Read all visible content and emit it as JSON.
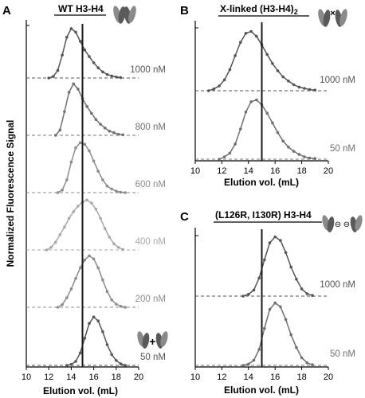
{
  "figure": {
    "ylabel": "Normalized Fluorescence Signal",
    "icon_plus": "+",
    "icon_minus": "⊖",
    "icon_link": "×"
  },
  "chart_data": [
    {
      "panel_letter": "A",
      "title": "WT H3-H4",
      "type": "line",
      "xlabel": "Elution vol. (mL)",
      "xlim": [
        10,
        20
      ],
      "xticks": [
        "10",
        "12",
        "14",
        "16",
        "18",
        "20"
      ],
      "vline_x": 15,
      "icon": "h3h4-tetramer-icon",
      "series": [
        {
          "name": "1000 nM",
          "color": "#555555",
          "x": [
            12.0,
            12.4,
            12.8,
            13.2,
            13.6,
            14.0,
            14.4,
            14.8,
            15.2,
            15.6,
            16.0,
            16.4,
            16.8,
            17.2,
            17.6,
            18.0,
            18.4
          ],
          "y": [
            0.0,
            0.03,
            0.15,
            0.45,
            0.8,
            0.97,
            0.9,
            0.72,
            0.55,
            0.42,
            0.3,
            0.2,
            0.12,
            0.07,
            0.04,
            0.02,
            0.01
          ]
        },
        {
          "name": "800 nM",
          "color": "#707070",
          "x": [
            12.6,
            13.0,
            13.4,
            13.8,
            14.2,
            14.6,
            15.0,
            15.4,
            15.8,
            16.2,
            16.6,
            17.0,
            17.4,
            17.8,
            18.2,
            18.6
          ],
          "y": [
            0.0,
            0.1,
            0.45,
            0.82,
            0.98,
            0.88,
            0.7,
            0.55,
            0.42,
            0.3,
            0.21,
            0.14,
            0.08,
            0.05,
            0.02,
            0.01
          ]
        },
        {
          "name": "600 nM",
          "color": "#8c8c8c",
          "x": [
            12.8,
            13.2,
            13.6,
            14.0,
            14.4,
            14.8,
            15.2,
            15.6,
            16.0,
            16.4,
            16.8,
            17.2,
            17.6,
            18.0,
            18.4,
            18.8
          ],
          "y": [
            0.0,
            0.05,
            0.25,
            0.6,
            0.88,
            0.98,
            0.95,
            0.82,
            0.62,
            0.42,
            0.25,
            0.13,
            0.07,
            0.03,
            0.01,
            0.0
          ]
        },
        {
          "name": "400 nM",
          "color": "#a8a8a8",
          "x": [
            11.8,
            12.2,
            12.6,
            13.0,
            13.4,
            13.8,
            14.2,
            14.6,
            15.0,
            15.4,
            15.8,
            16.2,
            16.6,
            17.0,
            17.4,
            17.8,
            18.2,
            18.6
          ],
          "y": [
            0.0,
            0.05,
            0.15,
            0.3,
            0.45,
            0.62,
            0.75,
            0.86,
            0.94,
            0.98,
            0.92,
            0.8,
            0.62,
            0.42,
            0.25,
            0.12,
            0.05,
            0.01
          ]
        },
        {
          "name": "200 nM",
          "color": "#8c8c8c",
          "x": [
            12.8,
            13.2,
            13.6,
            14.0,
            14.4,
            14.8,
            15.2,
            15.6,
            16.0,
            16.4,
            16.8,
            17.2,
            17.6,
            18.0,
            18.4,
            18.8
          ],
          "y": [
            0.0,
            0.05,
            0.18,
            0.35,
            0.55,
            0.75,
            0.9,
            0.98,
            0.92,
            0.75,
            0.52,
            0.3,
            0.14,
            0.06,
            0.02,
            0.0
          ]
        },
        {
          "name": "50 nM",
          "color": "#555555",
          "x": [
            13.6,
            14.0,
            14.4,
            14.8,
            15.2,
            15.6,
            16.0,
            16.4,
            16.8,
            17.2,
            17.6,
            18.0,
            18.4,
            18.8
          ],
          "y": [
            0.0,
            0.02,
            0.08,
            0.25,
            0.55,
            0.85,
            0.98,
            0.9,
            0.68,
            0.42,
            0.22,
            0.1,
            0.03,
            0.0
          ]
        }
      ]
    },
    {
      "panel_letter": "B",
      "title": "X-linked (H3-H4)",
      "title_subscript": "2",
      "type": "line",
      "xlabel": "Elution vol. (mL)",
      "xlim": [
        10,
        20
      ],
      "xticks": [
        "10",
        "12",
        "14",
        "16",
        "18",
        "20"
      ],
      "vline_x": 15,
      "icon": "crosslinked-tetramer-icon",
      "series": [
        {
          "name": "1000 nM",
          "color": "#555555",
          "x": [
            11.0,
            11.4,
            11.8,
            12.2,
            12.6,
            13.0,
            13.4,
            13.8,
            14.2,
            14.6,
            15.0,
            15.4,
            15.8,
            16.2,
            16.6,
            17.0,
            17.4,
            17.8,
            18.2,
            18.6,
            19.0
          ],
          "y": [
            0.0,
            0.03,
            0.08,
            0.18,
            0.35,
            0.58,
            0.8,
            0.95,
            0.98,
            0.9,
            0.76,
            0.6,
            0.45,
            0.33,
            0.23,
            0.16,
            0.1,
            0.06,
            0.04,
            0.02,
            0.01
          ]
        },
        {
          "name": "50 nM",
          "color": "#707070",
          "x": [
            11.8,
            12.2,
            12.6,
            13.0,
            13.4,
            13.8,
            14.2,
            14.6,
            15.0,
            15.4,
            15.8,
            16.2,
            16.6,
            17.0,
            17.4,
            17.8,
            18.2,
            18.6,
            19.0
          ],
          "y": [
            0.0,
            0.04,
            0.1,
            0.25,
            0.5,
            0.78,
            0.95,
            0.98,
            0.9,
            0.76,
            0.6,
            0.44,
            0.3,
            0.2,
            0.13,
            0.08,
            0.04,
            0.02,
            0.01
          ]
        }
      ]
    },
    {
      "panel_letter": "C",
      "title": "(L126R, I130R) H3-H4",
      "type": "line",
      "xlabel": "Elution vol. (mL)",
      "xlim": [
        10,
        20
      ],
      "xticks": [
        "10",
        "12",
        "14",
        "16",
        "18",
        "20"
      ],
      "vline_x": 15,
      "icon": "mutant-dimer-icon",
      "series": [
        {
          "name": "1000 nM",
          "color": "#555555",
          "x": [
            13.6,
            14.0,
            14.4,
            14.8,
            15.2,
            15.6,
            16.0,
            16.4,
            16.8,
            17.2,
            17.6,
            18.0,
            18.4,
            18.8
          ],
          "y": [
            0.0,
            0.03,
            0.1,
            0.3,
            0.6,
            0.88,
            0.98,
            0.92,
            0.72,
            0.48,
            0.28,
            0.12,
            0.04,
            0.01
          ]
        },
        {
          "name": "50 nM",
          "color": "#707070",
          "x": [
            13.6,
            14.0,
            14.4,
            14.8,
            15.2,
            15.6,
            16.0,
            16.4,
            16.8,
            17.2,
            17.6,
            18.0,
            18.4,
            18.8
          ],
          "y": [
            0.0,
            0.02,
            0.08,
            0.25,
            0.58,
            0.88,
            0.98,
            0.92,
            0.72,
            0.48,
            0.28,
            0.12,
            0.04,
            0.01
          ]
        }
      ]
    }
  ]
}
